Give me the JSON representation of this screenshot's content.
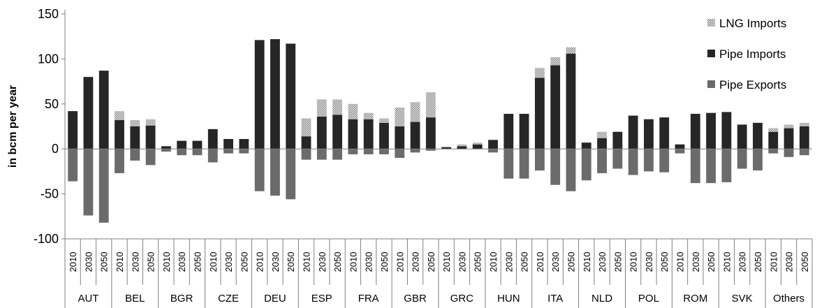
{
  "chart_data": {
    "type": "bar",
    "stacked": true,
    "ylabel": "in bcm per year",
    "ylim": [
      -100,
      150
    ],
    "yticks": [
      150,
      100,
      50,
      0,
      -50,
      -100
    ],
    "grid": false,
    "legend_position": "top-right",
    "years": [
      "2010",
      "2030",
      "2050"
    ],
    "countries": [
      "AUT",
      "BEL",
      "BGR",
      "CZE",
      "DEU",
      "ESP",
      "FRA",
      "GBR",
      "GRC",
      "HUN",
      "ITA",
      "NLD",
      "POL",
      "ROM",
      "SVK",
      "Others"
    ],
    "series": [
      {
        "name": "LNG Imports",
        "color": "#b5b5b5",
        "pattern": "dotted",
        "values": [
          0,
          0,
          0,
          10,
          7,
          7,
          0,
          0,
          0,
          0,
          0,
          0,
          0,
          0,
          0,
          20,
          19,
          17,
          17,
          7,
          5,
          21,
          22,
          28,
          0,
          2,
          2,
          0,
          0,
          0,
          11,
          9,
          7,
          0,
          7,
          0,
          0,
          0,
          0,
          0,
          0,
          0,
          0,
          0,
          0,
          4,
          4,
          4
        ]
      },
      {
        "name": "Pipe Imports",
        "color": "#262626",
        "values": [
          42,
          80,
          87,
          32,
          25,
          26,
          3,
          9,
          9,
          22,
          11,
          11,
          121,
          122,
          117,
          14,
          36,
          38,
          33,
          33,
          29,
          25,
          30,
          35,
          2,
          3,
          5,
          10,
          39,
          39,
          79,
          93,
          106,
          7,
          12,
          19,
          37,
          33,
          35,
          5,
          39,
          40,
          41,
          27,
          29,
          19,
          23,
          25
        ]
      },
      {
        "name": "Pipe Exports",
        "color": "#6b6b6b",
        "values": [
          -36,
          -74,
          -82,
          -27,
          -13,
          -18,
          -3,
          -7,
          -7,
          -15,
          -5,
          -5,
          -47,
          -52,
          -56,
          -12,
          -12,
          -12,
          -6,
          -6,
          -6,
          -10,
          -4,
          -2,
          0,
          0,
          0,
          -4,
          -33,
          -33,
          -24,
          -40,
          -47,
          -35,
          -27,
          -22,
          -29,
          -25,
          -26,
          -5,
          -38,
          -38,
          -37,
          -22,
          -24,
          -5,
          -9,
          -7
        ]
      }
    ]
  }
}
